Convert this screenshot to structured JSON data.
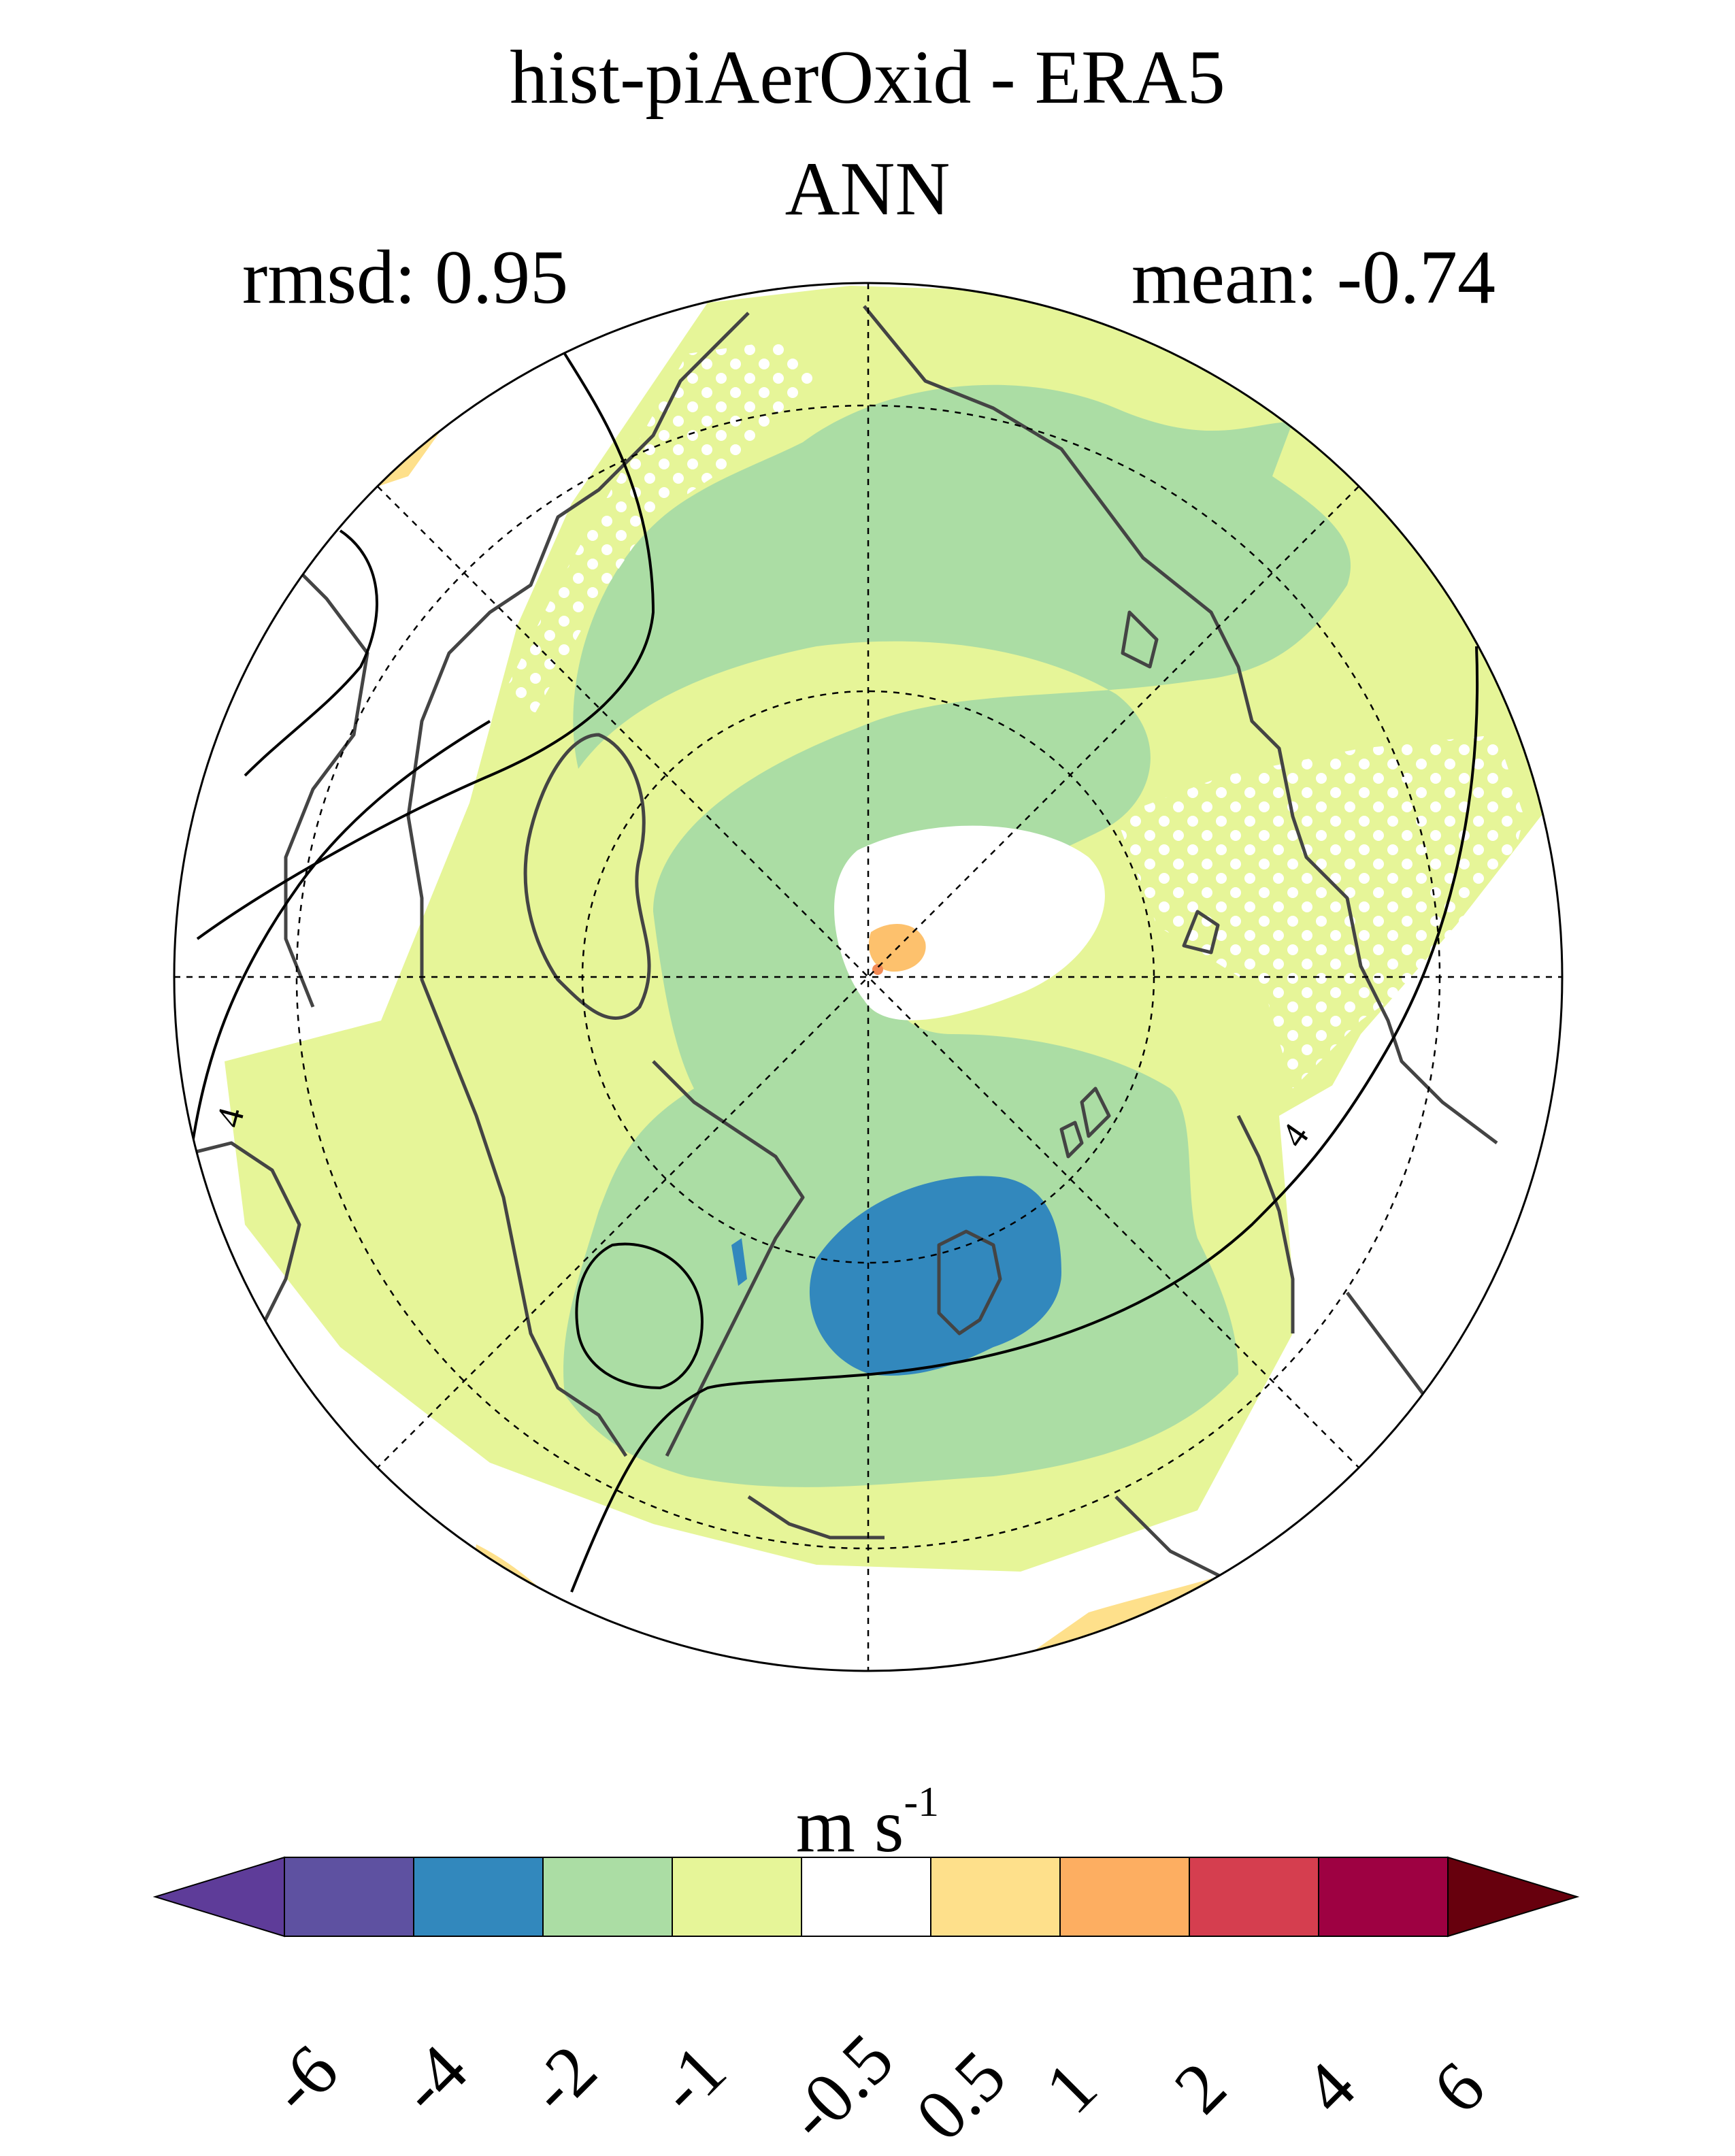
{
  "title": "hist-piAerOxid - ERA5",
  "subtitle": "ANN",
  "stats": {
    "rmsd": "rmsd: 0.95",
    "mean": "mean: -0.74"
  },
  "map": {
    "projection": "north polar stereographic",
    "field": "annual mean difference (model minus reanalysis)",
    "contour_label": "4"
  },
  "colorbar": {
    "units_base": "m s",
    "units_exp": "-1",
    "levels": [
      "-6",
      "-4",
      "-2",
      "-1",
      "-0.5",
      "0.5",
      "1",
      "2",
      "4",
      "6"
    ],
    "colors": [
      "#5e3c99",
      "#5e51a1",
      "#3288bd",
      "#abdda4",
      "#e6f598",
      "#ffffff",
      "#fee08b",
      "#fdae61",
      "#d53e4f",
      "#9e0142",
      "#67000d"
    ],
    "low_arrow_color": "#5e3c99",
    "high_arrow_color": "#67000d"
  }
}
